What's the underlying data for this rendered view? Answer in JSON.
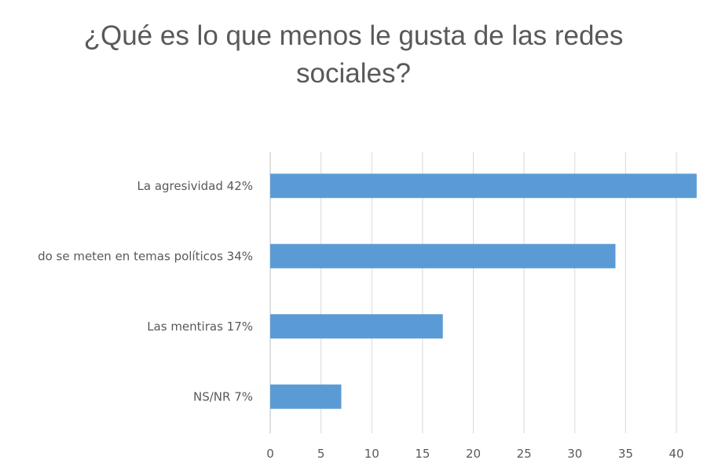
{
  "chart_data": {
    "type": "bar",
    "orientation": "horizontal",
    "title_line1": "¿Qué es lo que menos le gusta de las redes",
    "title_line2": "sociales?",
    "categories": [
      "La agresividad  42%",
      "do se meten en temas políticos  34%",
      "Las mentiras  17%",
      "NS/NR  7%"
    ],
    "values": [
      42,
      34,
      17,
      7
    ],
    "xlim": [
      0,
      40
    ],
    "xticks": [
      "0",
      "5",
      "10",
      "15",
      "20",
      "25",
      "30",
      "35",
      "40"
    ],
    "xlabel": "",
    "ylabel": "",
    "grid": true,
    "legend": "none",
    "bar_color": "#5B9BD5",
    "grid_color": "#D9D9D9"
  }
}
